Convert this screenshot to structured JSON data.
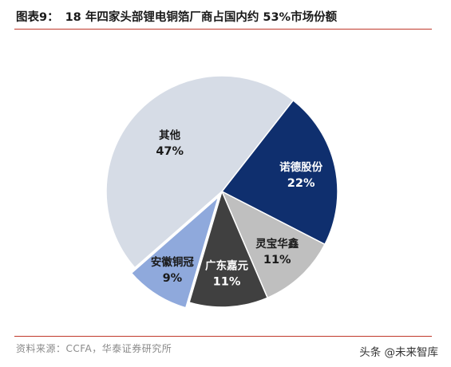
{
  "header": {
    "figure_label": "图表9：",
    "title": "18 年四家头部锂电铜箔厂商占国内约 53%市场份额"
  },
  "footer": {
    "source": "资料来源：CCFA，华泰证券研究所"
  },
  "watermark": {
    "text": "头条 @未来智库"
  },
  "chart_data": {
    "type": "pie",
    "title": "18 年四家头部锂电铜箔厂商占国内约 53%市场份额",
    "slices": [
      {
        "name": "诺德股份",
        "value": 22,
        "label": "22%",
        "color": "#0f2f6e",
        "text_color": "#ffffff",
        "explode": false
      },
      {
        "name": "灵宝华鑫",
        "value": 11,
        "label": "11%",
        "color": "#bfbfbf",
        "text_color": "#1a1a1a",
        "explode": false
      },
      {
        "name": "广东嘉元",
        "value": 11,
        "label": "11%",
        "color": "#404040",
        "text_color": "#ffffff",
        "explode": false
      },
      {
        "name": "安徽铜冠",
        "value": 9,
        "label": "9%",
        "color": "#8fa9dc",
        "text_color": "#1a1a1a",
        "explode": true
      },
      {
        "name": "其他",
        "value": 47,
        "label": "47%",
        "color": "#d6dce6",
        "text_color": "#1a1a1a",
        "explode": false
      }
    ],
    "start_angle_deg": 38,
    "direction": "clockwise",
    "legend": "none"
  }
}
